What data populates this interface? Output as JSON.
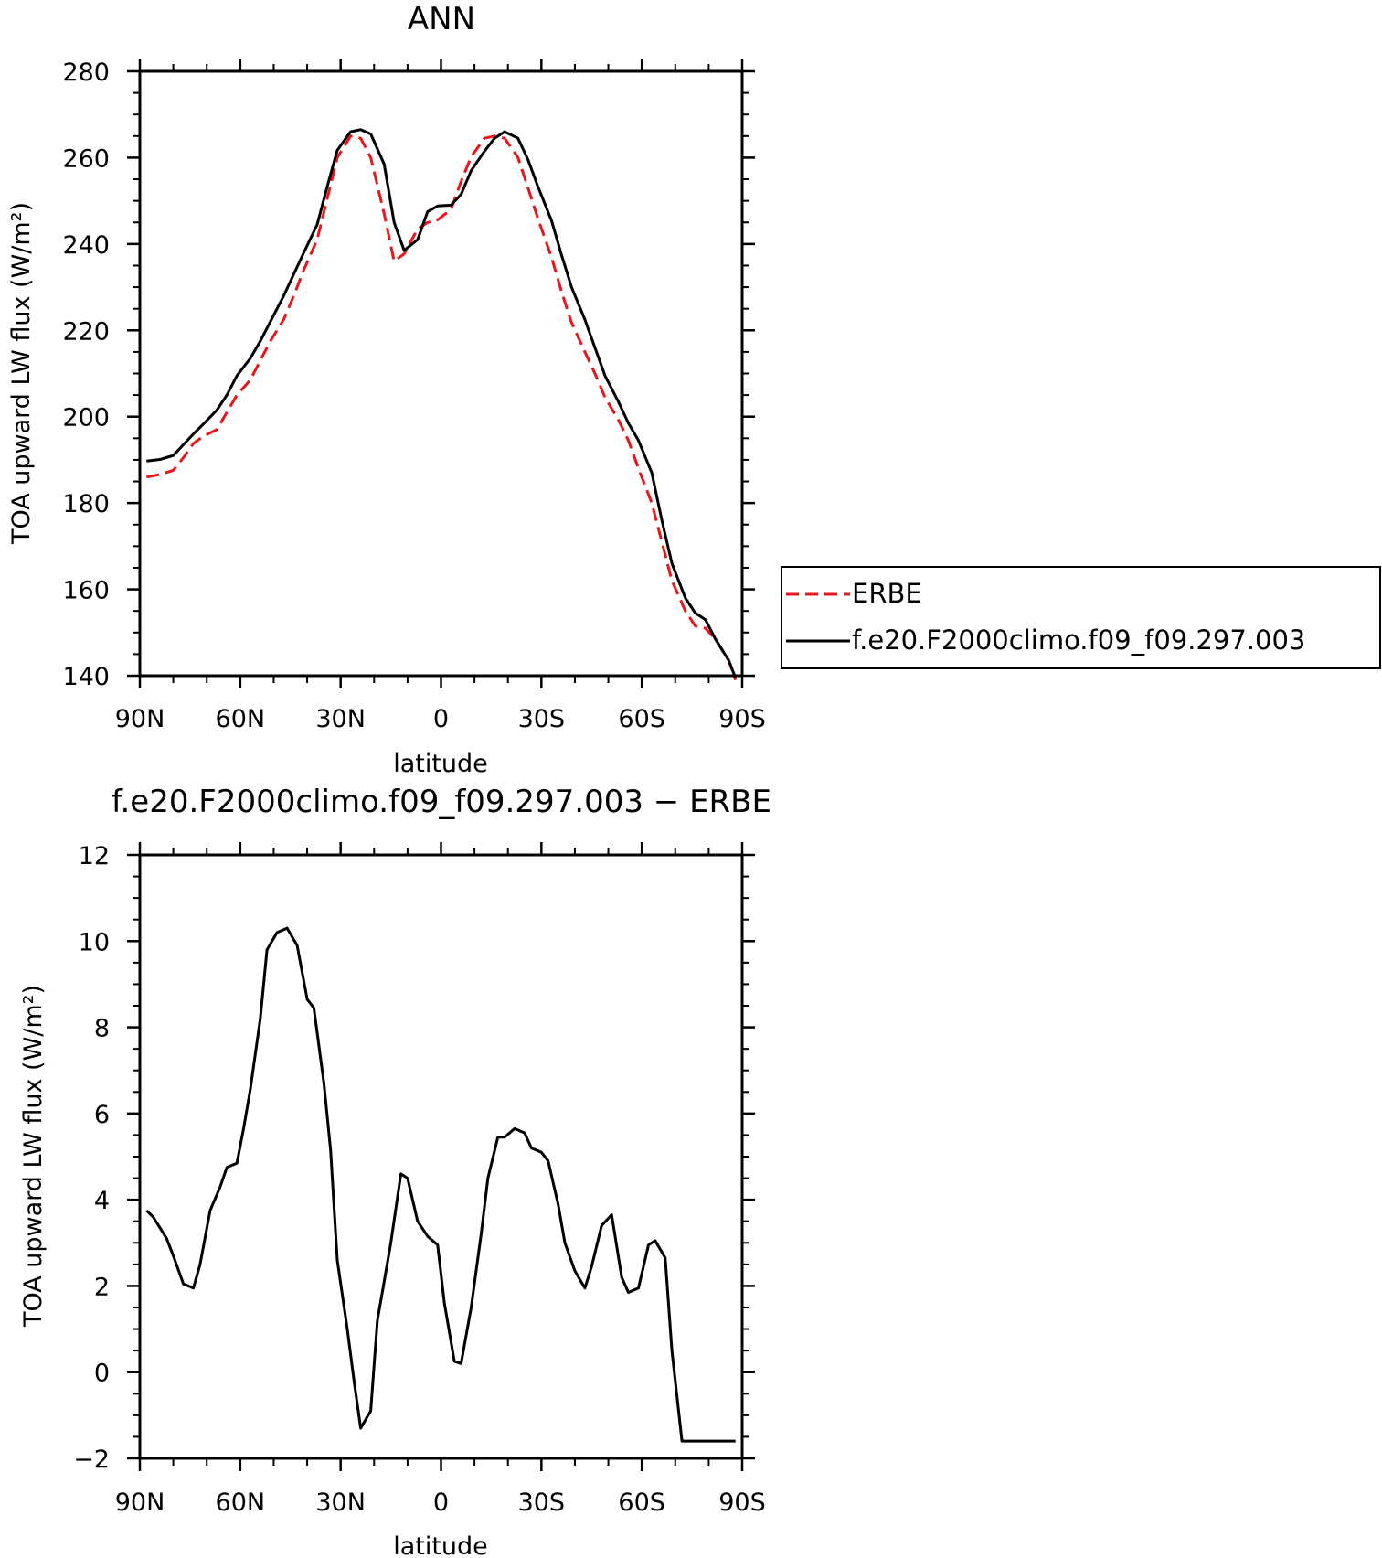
{
  "chart_data": [
    {
      "type": "line",
      "title": "ANN",
      "xlabel": "latitude",
      "ylabel": "TOA upward LW flux (W/m²)",
      "xlim": [
        90,
        -90
      ],
      "ylim": [
        140,
        280
      ],
      "x_ticks": [
        {
          "value": 90,
          "label": "90N"
        },
        {
          "value": 60,
          "label": "60N"
        },
        {
          "value": 30,
          "label": "30N"
        },
        {
          "value": 0,
          "label": "0"
        },
        {
          "value": -30,
          "label": "30S"
        },
        {
          "value": -60,
          "label": "60S"
        },
        {
          "value": -90,
          "label": "90S"
        }
      ],
      "y_ticks": [
        140,
        160,
        180,
        200,
        220,
        240,
        260,
        280
      ],
      "legend": "right",
      "series": [
        {
          "name": "ERBE",
          "color": "#e8171b",
          "dash": "dashed",
          "x": [
            88,
            84,
            80,
            77,
            74,
            71,
            67,
            64,
            61,
            57,
            54,
            51,
            47,
            44,
            41,
            37,
            34,
            31,
            27,
            24,
            21,
            17,
            14,
            11,
            7,
            4,
            1,
            -3,
            -6,
            -9,
            -13,
            -16,
            -19,
            -23,
            -26,
            -29,
            -33,
            -36,
            -39,
            -43,
            -46,
            -49,
            -53,
            -56,
            -59,
            -63,
            -66,
            -69,
            -73,
            -76,
            -79,
            -82,
            -86,
            -88
          ],
          "values": [
            186,
            186.6,
            187.6,
            190.5,
            193.8,
            195.5,
            197,
            201,
            205,
            208.5,
            213,
            217.5,
            222.5,
            228,
            234,
            241,
            250.5,
            260,
            265,
            264.5,
            260,
            247,
            236,
            237.7,
            243.5,
            245,
            245.6,
            248,
            254.5,
            260.2,
            264.5,
            265,
            264.5,
            260,
            253,
            245.8,
            237,
            229,
            221.8,
            215,
            210,
            204.5,
            199.3,
            194.5,
            188,
            180,
            171,
            162,
            155,
            151.5,
            151,
            148.5,
            143.5,
            139
          ]
        },
        {
          "name": "f.e20.F2000climo.f09_f09.297.003",
          "color": "#000000",
          "dash": "solid",
          "x": [
            88,
            84,
            80,
            77,
            74,
            71,
            67,
            64,
            61,
            57,
            54,
            51,
            47,
            44,
            41,
            37,
            34,
            31,
            27,
            24,
            21,
            17,
            14,
            11,
            7,
            4,
            1,
            -3,
            -6,
            -9,
            -13,
            -16,
            -19,
            -23,
            -26,
            -29,
            -33,
            -36,
            -39,
            -43,
            -46,
            -49,
            -53,
            -56,
            -59,
            -63,
            -66,
            -69,
            -73,
            -76,
            -79,
            -82,
            -86,
            -88
          ],
          "values": [
            189.7,
            190.1,
            191,
            193.5,
            196,
            198.3,
            201.5,
            205,
            209.5,
            213.5,
            217.5,
            222,
            228,
            233,
            238,
            244.5,
            253.3,
            261.7,
            266,
            266.5,
            265.5,
            258.5,
            245,
            238.5,
            241,
            247.5,
            248.8,
            249,
            251.5,
            257,
            261.5,
            264.5,
            266,
            264.5,
            259.5,
            253.2,
            245.5,
            237.5,
            230,
            222.5,
            216,
            209.5,
            203.5,
            198.5,
            194.5,
            187,
            176,
            166,
            158,
            154.5,
            153,
            148.5,
            143.5,
            139.5
          ]
        }
      ]
    },
    {
      "type": "line",
      "title": "f.e20.F2000climo.f09_f09.297.003 − ERBE",
      "xlabel": "latitude",
      "ylabel": "TOA upward LW flux (W/m²)",
      "xlim": [
        90,
        -90
      ],
      "ylim": [
        -2,
        12
      ],
      "x_ticks": [
        {
          "value": 90,
          "label": "90N"
        },
        {
          "value": 60,
          "label": "60N"
        },
        {
          "value": 30,
          "label": "30N"
        },
        {
          "value": 0,
          "label": "0"
        },
        {
          "value": -30,
          "label": "30S"
        },
        {
          "value": -60,
          "label": "60S"
        },
        {
          "value": -90,
          "label": "90S"
        }
      ],
      "y_ticks": [
        -2,
        0,
        2,
        4,
        6,
        8,
        10,
        12
      ],
      "series": [
        {
          "color": "#000000",
          "dash": "solid",
          "x": [
            88,
            86,
            84,
            82,
            80,
            77,
            74,
            72,
            69,
            66,
            64,
            61,
            59,
            57,
            54,
            52,
            49,
            46,
            43,
            40,
            38,
            35,
            33,
            31,
            28,
            26,
            24,
            21,
            19,
            17,
            15,
            12,
            10,
            7,
            4,
            1,
            -1,
            -4,
            -6,
            -9,
            -12,
            -14,
            -17,
            -19,
            -22,
            -25,
            -27,
            -30,
            -32,
            -35,
            -37,
            -40,
            -43,
            -45,
            -48,
            -51,
            -54,
            -56,
            -59,
            -62,
            -64,
            -67,
            -69,
            -72,
            -75,
            -77,
            -80,
            -83,
            -86,
            -88
          ],
          "values": [
            3.75,
            3.6,
            3.35,
            3.1,
            2.7,
            2.05,
            1.95,
            2.5,
            3.75,
            4.3,
            4.75,
            4.85,
            5.65,
            6.55,
            8.2,
            9.8,
            10.2,
            10.3,
            9.9,
            8.65,
            8.45,
            6.7,
            5.15,
            2.6,
            1.0,
            -0.2,
            -1.3,
            -0.9,
            1.2,
            2.1,
            3.0,
            4.6,
            4.5,
            3.5,
            3.15,
            2.95,
            1.6,
            0.25,
            0.2,
            1.5,
            3.2,
            4.5,
            5.45,
            5.45,
            5.65,
            5.55,
            5.2,
            5.1,
            4.9,
            3.9,
            3.0,
            2.35,
            1.95,
            2.45,
            3.4,
            3.65,
            2.2,
            1.85,
            1.95,
            2.95,
            3.05,
            2.65,
            0.5,
            -1.6,
            -1.6,
            -1.6,
            -1.6,
            -1.6,
            -1.6,
            -1.6
          ]
        }
      ]
    }
  ]
}
